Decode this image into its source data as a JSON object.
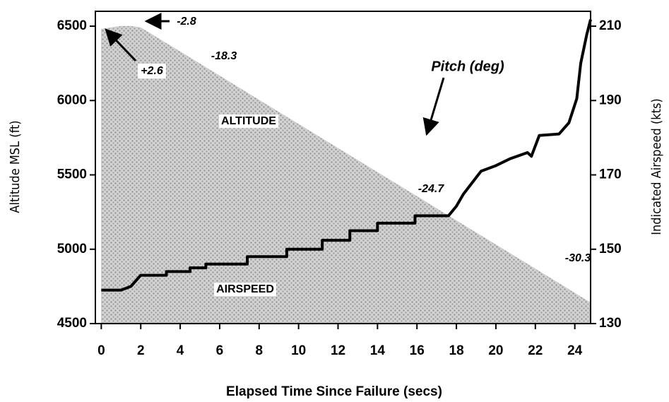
{
  "chart_data": {
    "type": "line",
    "xlabel": "Elapsed Time Since Failure (secs)",
    "ylabel": "Altitude MSL (ft)",
    "y2label": "Indicated Airspeed (kts)",
    "xlim": [
      -0.3,
      24.8
    ],
    "xticks": [
      0,
      2,
      4,
      6,
      8,
      10,
      12,
      14,
      16,
      18,
      20,
      22,
      24
    ],
    "ylim": [
      4500,
      6600
    ],
    "yticks": [
      4500,
      5000,
      5500,
      6000,
      6500
    ],
    "y2lim": [
      130,
      214
    ],
    "y2ticks": [
      130,
      150,
      170,
      190,
      210
    ],
    "series": [
      {
        "name": "ALTITUDE",
        "kind": "area",
        "color": "#bdbdbd",
        "x": [
          0,
          0.5,
          1,
          1.5,
          2,
          4,
          6,
          8,
          10,
          12,
          14,
          16,
          18,
          20,
          22,
          24,
          24.8
        ],
        "values": [
          6480,
          6490,
          6500,
          6500,
          6490,
          6328,
          6166,
          6003,
          5841,
          5679,
          5517,
          5355,
          5192,
          5030,
          4868,
          4705,
          4640
        ]
      },
      {
        "name": "AIRSPEED",
        "kind": "line",
        "axis": "y2",
        "color": "#000000",
        "x": [
          0,
          1,
          1.5,
          2,
          3.3,
          3.3,
          4.5,
          4.5,
          5.3,
          5.3,
          7.4,
          7.4,
          9.4,
          9.4,
          11.2,
          11.2,
          12.6,
          12.6,
          14,
          14,
          15.9,
          15.9,
          17.6,
          18,
          18.35,
          19.25,
          19.96,
          20.7,
          21.6,
          21.8,
          22.2,
          23.2,
          23.7,
          24.1,
          24.3,
          24.6,
          24.8
        ],
        "values": [
          139,
          139,
          140,
          143,
          143,
          144,
          144,
          145,
          145,
          146,
          146,
          148,
          148,
          150,
          150,
          152.4,
          152.4,
          155,
          155,
          157,
          157,
          159,
          159,
          161.6,
          164.8,
          171,
          172.4,
          174.3,
          176,
          175,
          180.6,
          181,
          184,
          190.5,
          200,
          207.6,
          211.8
        ]
      }
    ],
    "annotations": [
      "-2.8",
      "+2.6",
      "-18.3",
      "Pitch (deg)",
      "-24.7",
      "-30.3"
    ]
  }
}
